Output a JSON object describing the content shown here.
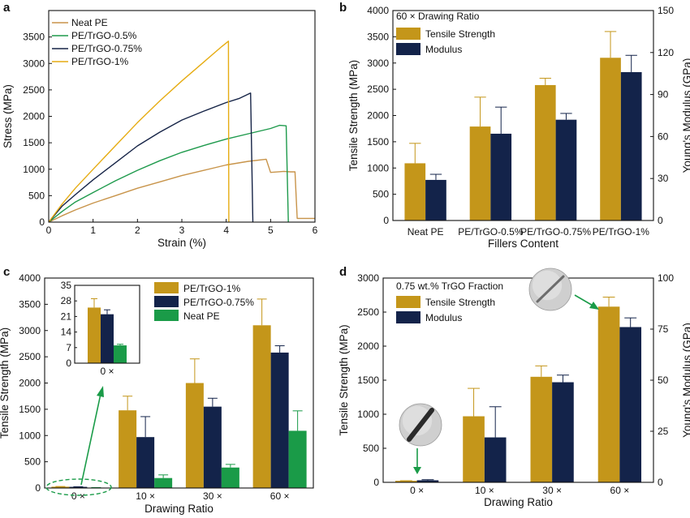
{
  "colors": {
    "neat_pe": "#c8944a",
    "trgo_05": "#1e9a4c",
    "trgo_075": "#162447",
    "trgo_1": "#e6ac12",
    "gold": "#c4961a",
    "navy": "#13234a",
    "green": "#1a9b48"
  },
  "chart_data": [
    {
      "panel": "a",
      "type": "line",
      "xlabel": "Strain (%)",
      "ylabel": "Stress (MPa)",
      "xlim": [
        0,
        6
      ],
      "ylim": [
        0,
        4000
      ],
      "xticks": [
        "0",
        "1",
        "2",
        "3",
        "4",
        "5",
        "6"
      ],
      "yticks": [
        "0",
        "500",
        "1000",
        "1500",
        "2000",
        "2500",
        "3000",
        "3500"
      ],
      "legend_position": "top-left",
      "series": [
        {
          "name": "Neat PE",
          "color_key": "neat_pe",
          "x": [
            0,
            0.3,
            0.6,
            1.0,
            1.5,
            2.0,
            2.5,
            3.0,
            3.5,
            4.0,
            4.5,
            4.9,
            5.0,
            5.3,
            5.45,
            5.55,
            5.6,
            6.0
          ],
          "y": [
            0,
            120,
            230,
            360,
            500,
            640,
            760,
            880,
            980,
            1080,
            1150,
            1190,
            940,
            960,
            950,
            950,
            70,
            70
          ]
        },
        {
          "name": "PE/TrGO-0.5%",
          "color_key": "trgo_05",
          "x": [
            0,
            0.3,
            0.6,
            1.0,
            1.5,
            2.0,
            2.5,
            3.0,
            3.5,
            4.0,
            4.5,
            5.0,
            5.2,
            5.35,
            5.4
          ],
          "y": [
            0,
            200,
            380,
            560,
            780,
            980,
            1160,
            1320,
            1450,
            1570,
            1670,
            1770,
            1830,
            1820,
            0
          ]
        },
        {
          "name": "PE/TrGO-0.75%",
          "color_key": "trgo_075",
          "x": [
            0,
            0.3,
            0.6,
            1.0,
            1.5,
            2.0,
            2.5,
            3.0,
            3.5,
            4.0,
            4.3,
            4.55,
            4.6
          ],
          "y": [
            0,
            300,
            520,
            800,
            1120,
            1440,
            1700,
            1930,
            2100,
            2260,
            2340,
            2440,
            0
          ]
        },
        {
          "name": "PE/TrGO-1%",
          "color_key": "trgo_1",
          "x": [
            0,
            0.3,
            0.6,
            1.0,
            1.5,
            2.0,
            2.5,
            3.0,
            3.5,
            3.9,
            4.05,
            4.06
          ],
          "y": [
            0,
            340,
            640,
            1000,
            1440,
            1880,
            2290,
            2670,
            3030,
            3320,
            3420,
            0
          ]
        }
      ]
    },
    {
      "panel": "b",
      "type": "bar",
      "annotation": "60 × Drawing Ratio",
      "xlabel": "Fillers Content",
      "ylabel": "Tensile Strength (MPa)",
      "y2label": "Young's Modulus (GPa)",
      "ylim": [
        0,
        4000
      ],
      "y2lim": [
        0,
        150
      ],
      "yticks": [
        "0",
        "500",
        "1000",
        "1500",
        "2000",
        "2500",
        "3000",
        "3500",
        "4000"
      ],
      "y2ticks": [
        "0",
        "30",
        "60",
        "90",
        "120",
        "150"
      ],
      "categories": [
        "Neat PE",
        "PE/TrGO-0.5%",
        "PE/TrGO-0.75%",
        "PE/TrGO-1%"
      ],
      "legend_position": "top-left",
      "series": [
        {
          "name": "Tensile Strength",
          "axis": "left",
          "color_key": "gold",
          "values": [
            1090,
            1790,
            2580,
            3100
          ],
          "errors": [
            380,
            560,
            130,
            500
          ]
        },
        {
          "name": "Modulus",
          "axis": "right",
          "color_key": "navy",
          "values": [
            29,
            62,
            72,
            106
          ],
          "errors": [
            4,
            19,
            4.5,
            12
          ]
        }
      ]
    },
    {
      "panel": "c",
      "type": "bar",
      "xlabel": "Drawing Ratio",
      "ylabel": "Tensile Strength (MPa)",
      "ylim": [
        0,
        4000
      ],
      "yticks": [
        "0",
        "500",
        "1000",
        "1500",
        "2000",
        "2500",
        "3000",
        "3500",
        "4000"
      ],
      "categories": [
        "0 ×",
        "10 ×",
        "30 ×",
        "60 ×"
      ],
      "legend_position": "top-right",
      "series": [
        {
          "name": "PE/TrGO-1%",
          "color_key": "gold",
          "values": [
            25,
            1480,
            2000,
            3100
          ],
          "errors": [
            4,
            270,
            460,
            500
          ]
        },
        {
          "name": "PE/TrGO-0.75%",
          "color_key": "navy",
          "values": [
            22,
            970,
            1550,
            2580
          ],
          "errors": [
            2,
            390,
            160,
            130
          ]
        },
        {
          "name": "Neat PE",
          "color_key": "green",
          "values": [
            8,
            190,
            390,
            1090
          ],
          "errors": [
            0.5,
            60,
            60,
            380
          ]
        }
      ],
      "inset": {
        "ylim": [
          0,
          35
        ],
        "yticks": [
          "0",
          "7",
          "14",
          "21",
          "28",
          "35"
        ],
        "categories": [
          "0 ×"
        ],
        "values": [
          25,
          22,
          8
        ],
        "errors": [
          4,
          2,
          0.5
        ]
      }
    },
    {
      "panel": "d",
      "type": "bar",
      "annotation": "0.75 wt.% TrGO Fraction",
      "xlabel": "Drawing Ratio",
      "ylabel": "Tensile Strength (MPa)",
      "y2label": "Young's Modulus (GPa)",
      "ylim": [
        0,
        3000
      ],
      "y2lim": [
        0,
        100
      ],
      "yticks": [
        "0",
        "500",
        "1000",
        "1500",
        "2000",
        "2500",
        "3000"
      ],
      "y2ticks": [
        "0",
        "25",
        "50",
        "75",
        "100"
      ],
      "categories": [
        "0 ×",
        "10 ×",
        "30 ×",
        "60 ×"
      ],
      "legend_position": "top-left",
      "series": [
        {
          "name": "Tensile Strength",
          "axis": "left",
          "color_key": "gold",
          "values": [
            22,
            970,
            1550,
            2580
          ],
          "errors": [
            2,
            410,
            160,
            140
          ]
        },
        {
          "name": "Modulus",
          "axis": "right",
          "color_key": "navy",
          "values": [
            1,
            22,
            49,
            76
          ],
          "errors": [
            0.3,
            15,
            3.5,
            4.5
          ]
        }
      ]
    }
  ]
}
